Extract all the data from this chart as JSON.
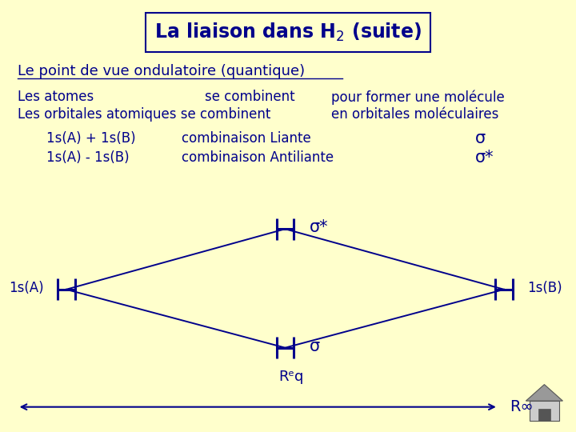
{
  "background_color": "#FFFFCC",
  "title": "La liaison dans H$_2$ (suite)",
  "title_fontsize": 17,
  "subtitle": "Le point de vue ondulatoire (quantique)",
  "subtitle_fontsize": 13,
  "line1a": "Les atomes",
  "line1b": "se combinent",
  "line1c": "pour former une molécule",
  "line2a": "Les orbitales atomiques se combinent",
  "line2b": "en orbitales moléculaires",
  "text_color": "#00008B",
  "diagram_color": "#00008B",
  "row3a": "1s(A) + 1s(B)",
  "row3b": "combinaison Liante",
  "row3c": "σ",
  "row4a": "1s(A) - 1s(B)",
  "row4b": "combinaison Antiliante",
  "row4c": "σ*",
  "sigma_star_label": "σ*",
  "sigma_label": "σ",
  "rinf_label": "R∞"
}
